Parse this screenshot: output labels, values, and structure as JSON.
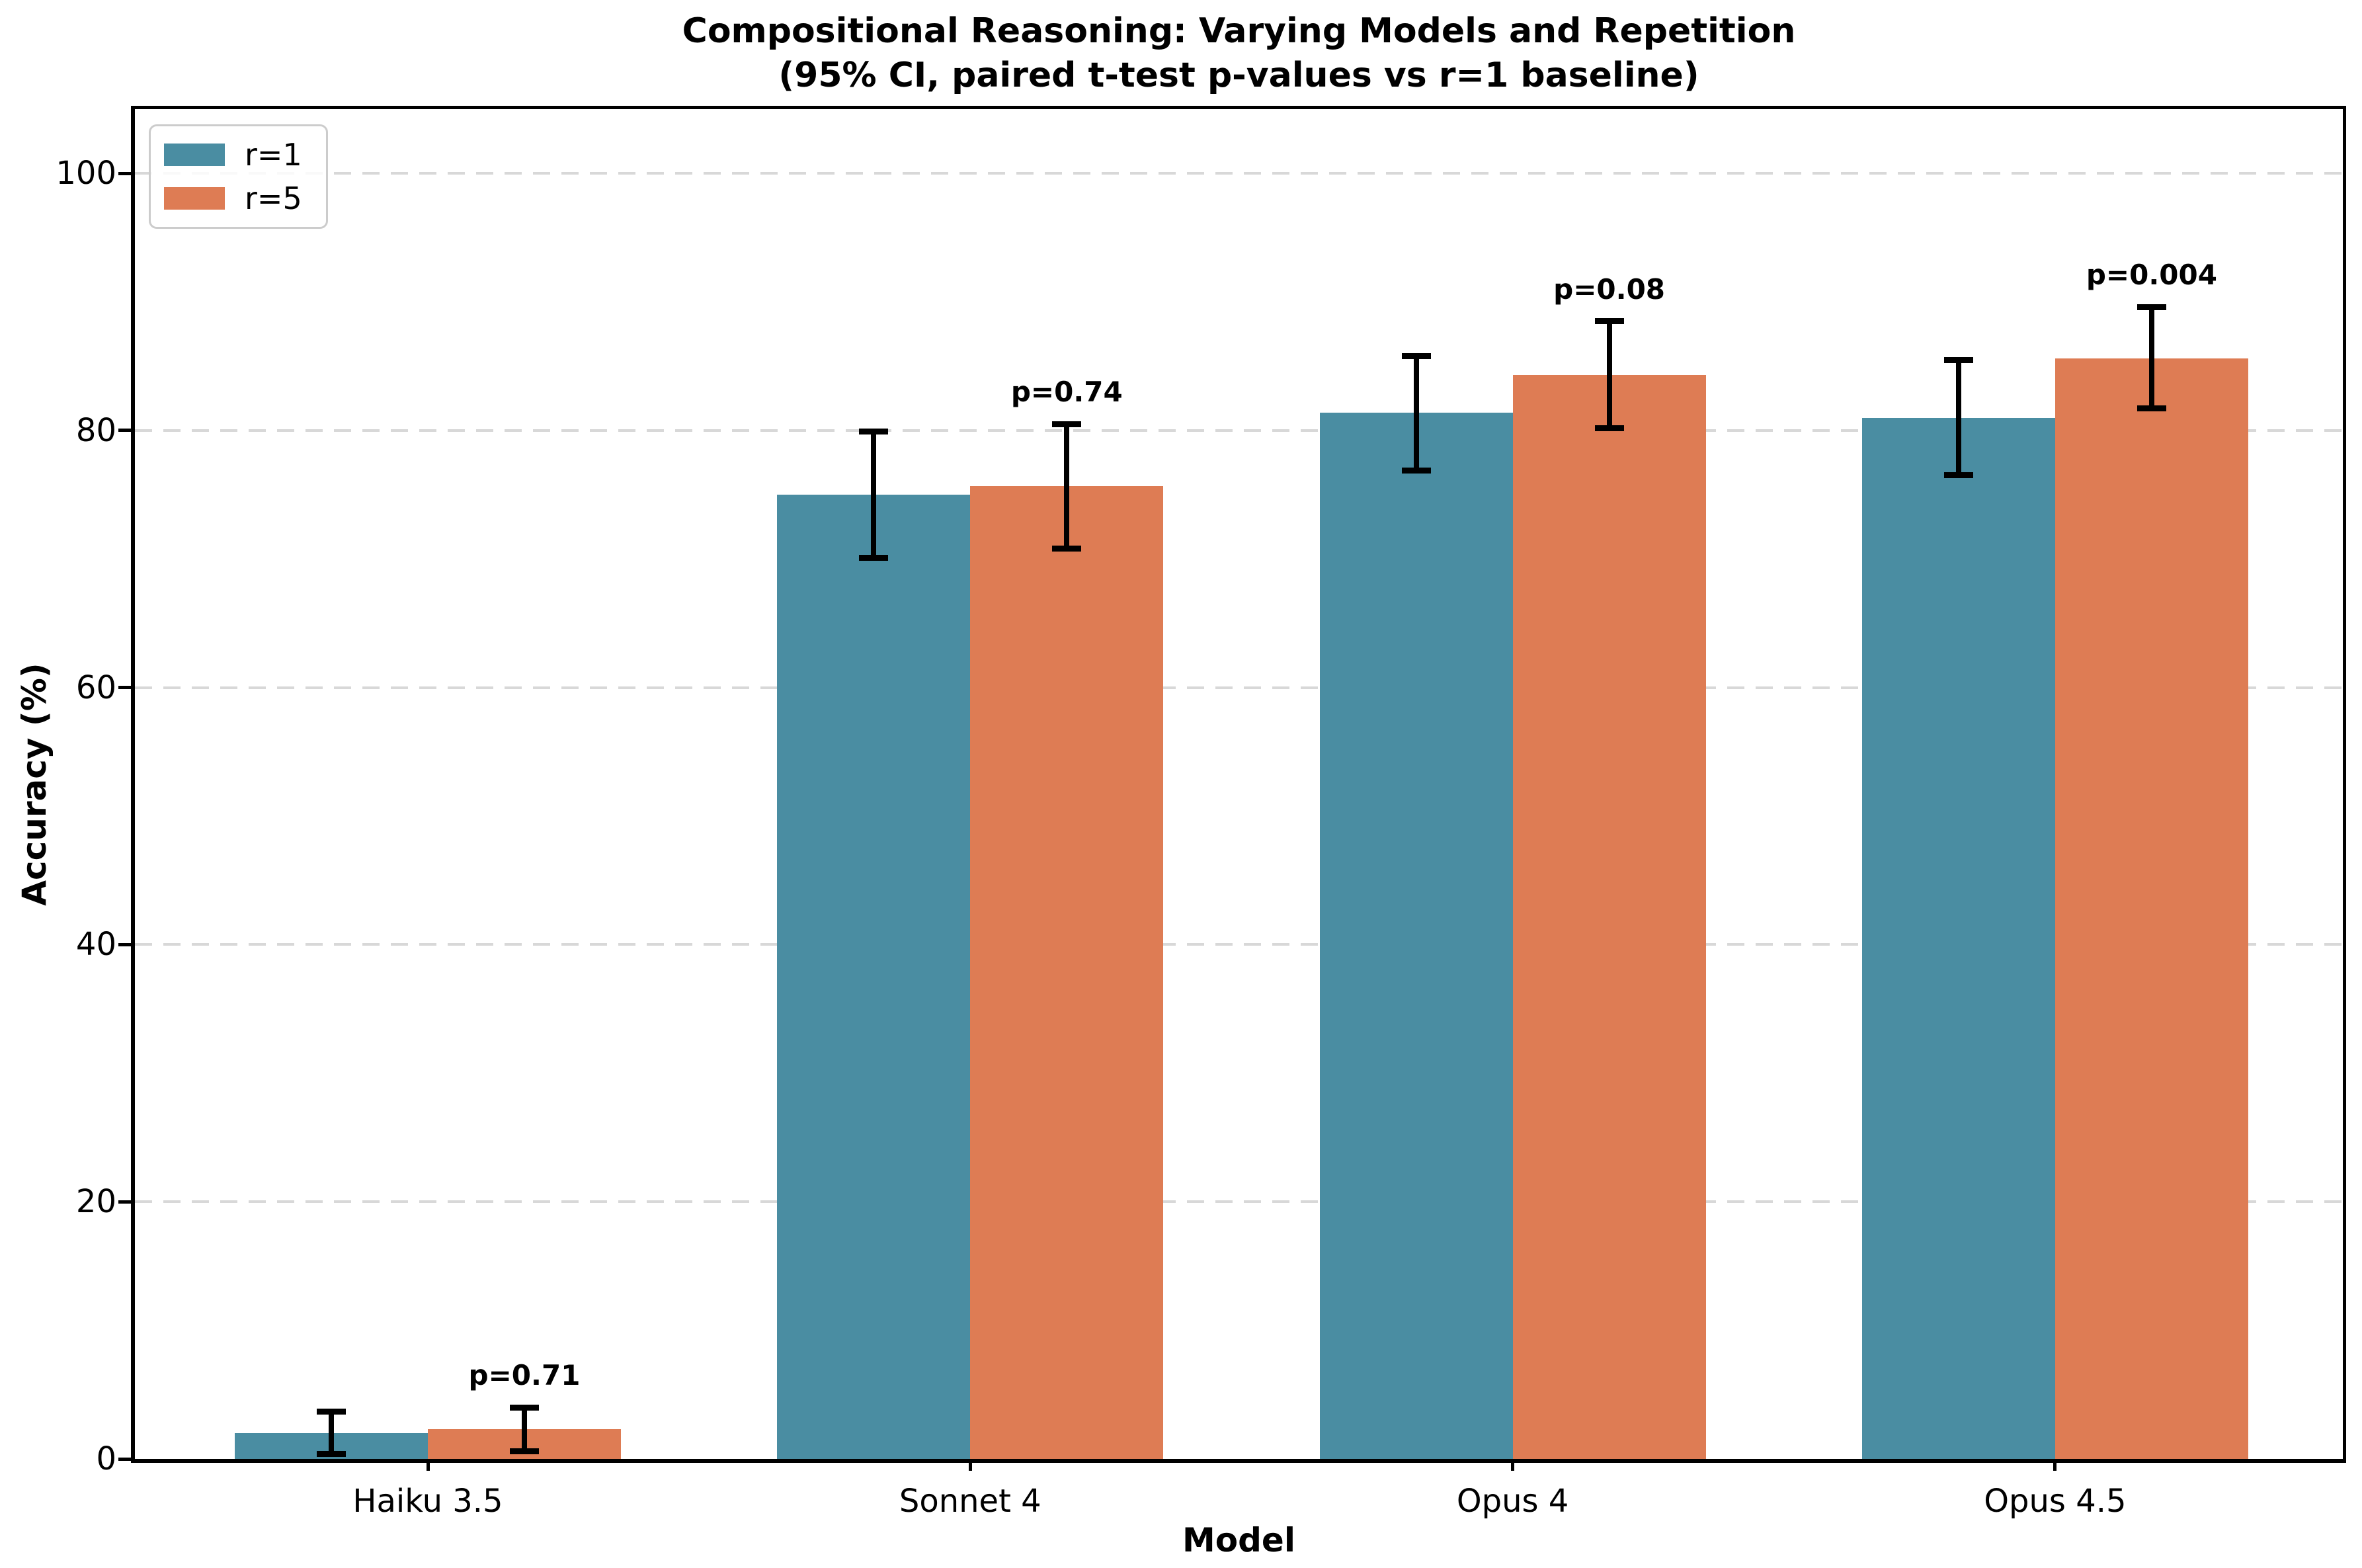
{
  "figure": {
    "title_line1": "Compositional Reasoning: Varying Models and Repetition",
    "title_line2": "(95% CI, paired t-test p-values vs r=1 baseline)"
  },
  "chart_data": {
    "type": "bar",
    "title": "Compositional Reasoning: Varying Models and Repetition",
    "subtitle": "(95% CI, paired t-test p-values vs r=1 baseline)",
    "xlabel": "Model",
    "ylabel": "Accuracy (%)",
    "categories": [
      "Haiku 3.5",
      "Sonnet 4",
      "Opus 4",
      "Opus 4.5"
    ],
    "series": [
      {
        "name": "r=1",
        "color": "#4a8da2",
        "values": [
          2.0,
          75.0,
          81.4,
          81.0
        ],
        "ci_low": [
          0.4,
          70.1,
          76.9,
          76.5
        ],
        "ci_high": [
          3.7,
          79.9,
          85.8,
          85.5
        ]
      },
      {
        "name": "r=5",
        "color": "#de7c54",
        "values": [
          2.3,
          75.7,
          84.3,
          85.6
        ],
        "ci_low": [
          0.6,
          70.8,
          80.2,
          81.7
        ],
        "ci_high": [
          4.0,
          80.5,
          88.5,
          89.6
        ]
      }
    ],
    "p_value_labels": [
      "p=0.71",
      "p=0.74",
      "p=0.08",
      "p=0.004"
    ],
    "p_values_note": "p-values shown above r=5 bars, vs r=1 baseline",
    "yticks": [
      0,
      20,
      40,
      60,
      80,
      100
    ],
    "ylim": [
      0,
      105
    ],
    "grid": "horizontal dashed light-gray at yticks, behind bars",
    "legend_position": "upper left",
    "error_bar_style": "black 95% CI with caps",
    "gridline_color": "#d8d8d8",
    "legend_border_color": "#cccccc"
  }
}
